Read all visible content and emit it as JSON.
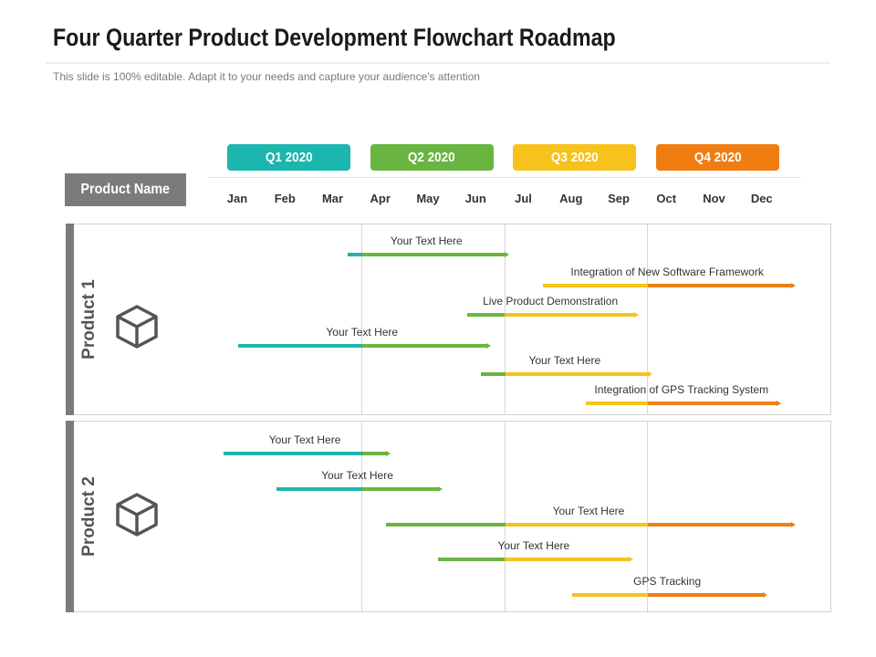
{
  "title": "Four Quarter Product Development Flowchart Roadmap",
  "subtitle": "This slide is 100% editable. Adapt it to your needs and capture your audience's attention",
  "colors": {
    "q1": "#1fb5ad",
    "q2": "#6bb540",
    "q3": "#f5c31c",
    "q4": "#ee7f16",
    "gray": "#7b7b7b"
  },
  "quarters": [
    {
      "label": "Q1 2020",
      "color": "#1bb6ad"
    },
    {
      "label": "Q2 2020",
      "color": "#68b540"
    },
    {
      "label": "Q3 2020",
      "color": "#f6c21b"
    },
    {
      "label": "Q4 2020",
      "color": "#f07d12"
    }
  ],
  "product_name_label": "Product Name",
  "months": [
    "Jan",
    "Feb",
    "Mar",
    "Apr",
    "May",
    "Jun",
    "Jul",
    "Aug",
    "Sep",
    "Oct",
    "Nov",
    "Dec"
  ],
  "products": [
    {
      "label": "Product 1",
      "icon": "cube-icon",
      "tasks": [
        {
          "label": "Your Text Here",
          "start": 2.7,
          "end": 6.0
        },
        {
          "label": "Integration of New Software Framework",
          "start": 6.8,
          "end": 12.0
        },
        {
          "label": "Live Product Demonstration",
          "start": 5.2,
          "end": 8.7
        },
        {
          "label": "Your Text Here",
          "start": 0.4,
          "end": 5.6
        },
        {
          "label": "Your Text Here",
          "start": 5.5,
          "end": 9.0
        },
        {
          "label": "Integration of GPS Tracking System",
          "start": 7.7,
          "end": 11.7
        }
      ]
    },
    {
      "label": "Product 2",
      "icon": "cube-icon",
      "tasks": [
        {
          "label": "Your Text Here",
          "start": 0.1,
          "end": 3.5
        },
        {
          "label": "Your Text Here",
          "start": 1.2,
          "end": 4.6
        },
        {
          "label": "Your Text Here",
          "start": 3.5,
          "end": 12.0
        },
        {
          "label": "Your Text Here",
          "start": 4.6,
          "end": 8.6
        },
        {
          "label": "GPS Tracking",
          "start": 7.4,
          "end": 11.4
        }
      ]
    }
  ]
}
